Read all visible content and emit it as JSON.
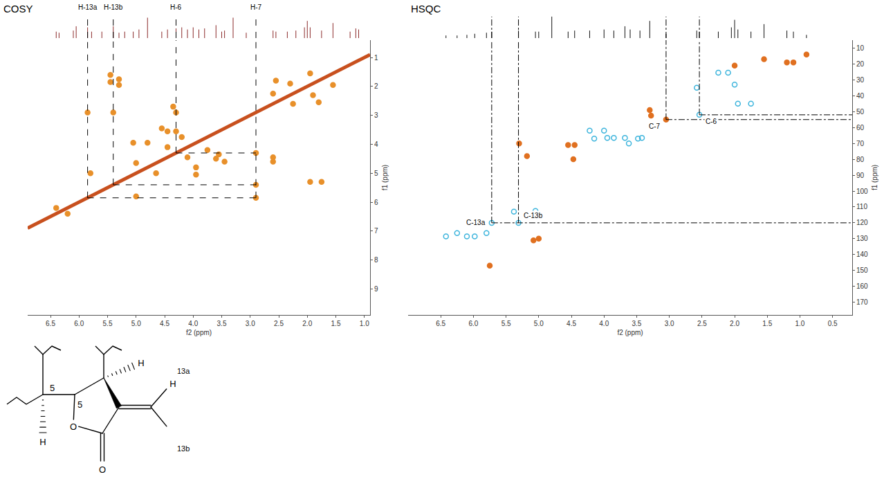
{
  "chart_data": [
    {
      "type": "scatter",
      "title": "COSY",
      "x_label": "f2 (ppm)",
      "y_label": "f1 (ppm)",
      "xlim": [
        6.9,
        0.9
      ],
      "ylim": [
        9.9,
        0.4
      ],
      "xticks": [
        6.5,
        {
          "value": 6,
          "label": "6.0"
        },
        5.5,
        {
          "value": 5,
          "label": "5.0"
        },
        4.5,
        {
          "value": 4,
          "label": "4.0"
        },
        3.5,
        {
          "value": 3,
          "label": "3.0"
        },
        2.5,
        {
          "value": 2,
          "label": "2.0"
        },
        1.5,
        {
          "value": 1,
          "label": "1.0"
        }
      ],
      "yticks": [
        1,
        2,
        3,
        4,
        5,
        6,
        7,
        8,
        9
      ],
      "grid": false,
      "series": [
        {
          "type": "line",
          "color": "#c8501e",
          "x": [
            6.9,
            0.9
          ],
          "values": [
            6.9,
            0.9
          ]
        },
        {
          "type": "scatter",
          "marker": "circle",
          "color": "#e8902a",
          "x": [
            5.85,
            2.9,
            5.4,
            2.9,
            4.3,
            2.9,
            5.45,
            5.45,
            4.35,
            4.45,
            4.3,
            3.55,
            4.1,
            4.45,
            3.75,
            4.2,
            3.6,
            3.45,
            4.55,
            2.6,
            2.6,
            3.95,
            4.8,
            3.95,
            5.05,
            4.65,
            5.0,
            5.8,
            5.0,
            1.95,
            1.75,
            5.3,
            5.3,
            6.4,
            6.2,
            2.25,
            2.6,
            1.9,
            2.3,
            1.8,
            1.55,
            1.95,
            2.55
          ],
          "values": [
            2.9,
            5.85,
            2.9,
            5.4,
            2.9,
            4.3,
            1.6,
            1.85,
            2.7,
            3.55,
            3.55,
            4.35,
            4.45,
            4.1,
            4.2,
            3.75,
            4.5,
            4.6,
            3.45,
            4.45,
            4.6,
            4.8,
            3.95,
            5.05,
            3.95,
            5.0,
            4.65,
            5.0,
            5.8,
            5.3,
            5.3,
            1.95,
            1.75,
            6.2,
            6.4,
            2.6,
            2.25,
            2.3,
            1.9,
            2.55,
            1.95,
            1.55,
            1.8
          ]
        }
      ],
      "guides": {
        "line_style": "dash",
        "color": "#000000",
        "lines": [
          {
            "x": 5.85,
            "y": 5.85,
            "to_x": 2.9
          },
          {
            "x": 5.4,
            "y": 5.4,
            "to_x": 2.9
          },
          {
            "x": 4.3,
            "y": 4.3,
            "to_x": 2.9
          },
          {
            "x": 2.9,
            "y": 5.85,
            "to_x": 2.9
          }
        ]
      }
    },
    {
      "type": "line",
      "color": "#8b2a2a",
      "xlim": [
        6.9,
        0.9
      ],
      "ylim": [
        0,
        1
      ],
      "tick_labels": false,
      "x": [
        6.4,
        6.35,
        6.1,
        6.05,
        5.85,
        5.78,
        5.6,
        5.4,
        5.3,
        5.2,
        5.05,
        4.95,
        4.8,
        4.55,
        4.45,
        4.3,
        4.2,
        4.1,
        4.0,
        3.9,
        3.8,
        3.6,
        3.5,
        3.45,
        3.3,
        3.07,
        2.6,
        2.55,
        2.35,
        2.2,
        2.05,
        2.0,
        1.95,
        1.75,
        1.55,
        1.25,
        1.15,
        1.1
      ],
      "values": [
        0.3,
        0.25,
        0.35,
        0.55,
        0.5,
        0.3,
        0.3,
        0.55,
        0.25,
        0.3,
        0.3,
        0.4,
        0.95,
        0.3,
        0.4,
        0.45,
        0.5,
        0.4,
        0.5,
        0.4,
        0.45,
        0.6,
        0.3,
        0.35,
        0.95,
        0.25,
        0.35,
        0.3,
        0.3,
        0.35,
        0.5,
        0.8,
        0.5,
        0.35,
        0.7,
        0.3,
        0.45,
        0.4
      ],
      "annotations": [
        {
          "text": "H-13a",
          "x": 5.85
        },
        {
          "text": "H-13b",
          "x": 5.4
        },
        {
          "text": "H-6",
          "x": 4.3
        },
        {
          "text": "H-7",
          "x": 2.9
        }
      ]
    },
    {
      "type": "scatter",
      "title": "HSQC",
      "x_label": "f2 (ppm)",
      "y_label": "f1 (ppm)",
      "xlim": [
        7.0,
        0.2
      ],
      "ylim": [
        178,
        5
      ],
      "xticks": [
        6.5,
        {
          "value": 6,
          "label": "6.0"
        },
        5.5,
        {
          "value": 5,
          "label": "5.0"
        },
        4.5,
        {
          "value": 4,
          "label": "4.0"
        },
        3.5,
        {
          "value": 3,
          "label": "3.0"
        },
        2.5,
        {
          "value": 2,
          "label": "2.0"
        },
        1.5,
        {
          "value": 1,
          "label": "1.0"
        },
        0.5
      ],
      "yticks": [
        10,
        20,
        30,
        40,
        50,
        60,
        70,
        80,
        90,
        100,
        110,
        120,
        130,
        140,
        150,
        160,
        170
      ],
      "grid": false,
      "series": [
        {
          "type": "scatter",
          "marker": "circle-open",
          "color": "#3cb4dc",
          "x": [
            6.42,
            6.25,
            6.1,
            5.98,
            5.8,
            5.72,
            5.31,
            5.38,
            5.05,
            4.22,
            4.15,
            4.0,
            3.95,
            3.85,
            3.68,
            3.62,
            3.48,
            3.42,
            2.58,
            2.54,
            2.25,
            2.0,
            1.95,
            1.75,
            2.1
          ],
          "values": [
            128.5,
            126.5,
            128.5,
            128.5,
            126.5,
            120,
            120,
            113,
            112.5,
            62,
            67,
            62,
            66.5,
            66.5,
            66.5,
            70,
            67,
            66.5,
            35,
            52,
            25.5,
            33,
            45,
            45,
            25.5
          ]
        },
        {
          "type": "scatter",
          "marker": "circle",
          "color": "#e07020",
          "x": [
            3.3,
            3.28,
            5.3,
            5.18,
            4.55,
            4.45,
            4.47,
            5.08,
            5.0,
            5.75,
            2.0,
            1.55,
            1.2,
            1.1,
            0.9,
            3.05
          ],
          "values": [
            49,
            52.5,
            70,
            78,
            71,
            71,
            80,
            131,
            130,
            147,
            21,
            17,
            19,
            19,
            14,
            55
          ]
        }
      ],
      "guides": {
        "line_style": "dashdot",
        "color": "#000000",
        "lines": [
          {
            "x": 5.72,
            "y": 120,
            "to_x": 0.2
          },
          {
            "x": 5.31,
            "y": 120,
            "to_x": 5.31
          },
          {
            "x": 3.05,
            "y": 55,
            "to_x": 0.2
          },
          {
            "x": 2.54,
            "y": 52,
            "to_x": 0.2
          }
        ]
      },
      "annotations": [
        {
          "text": "C-13a",
          "x": 5.72,
          "y": 120
        },
        {
          "text": "C-13b",
          "x": 5.31,
          "y": 120
        },
        {
          "text": "C-7",
          "x": 3.05,
          "y": 55
        },
        {
          "text": "C-6",
          "x": 2.54,
          "y": 52
        }
      ]
    },
    {
      "type": "line",
      "color": "#111111",
      "xlim": [
        7.0,
        0.2
      ],
      "ylim": [
        0,
        1
      ],
      "tick_labels": false,
      "x": [
        6.42,
        6.25,
        6.1,
        5.98,
        5.8,
        5.72,
        5.31,
        5.05,
        5.0,
        4.8,
        4.55,
        4.45,
        4.22,
        4.0,
        3.85,
        3.68,
        3.6,
        3.45,
        3.3,
        3.05,
        2.58,
        2.54,
        2.25,
        2.05,
        2.0,
        1.95,
        1.75,
        1.55,
        1.2,
        1.1,
        0.9
      ],
      "values": [
        0.12,
        0.12,
        0.15,
        0.2,
        0.25,
        0.3,
        0.35,
        0.3,
        0.3,
        1.0,
        0.3,
        0.35,
        0.35,
        0.4,
        0.35,
        0.55,
        0.4,
        0.35,
        0.8,
        0.2,
        0.35,
        0.3,
        0.3,
        0.5,
        0.85,
        0.4,
        0.3,
        0.65,
        0.35,
        0.3,
        0.15
      ]
    }
  ],
  "structure": {
    "labels": [
      "5",
      "5",
      "H",
      "H",
      "13a",
      "H",
      "13b",
      "O",
      "O"
    ]
  }
}
